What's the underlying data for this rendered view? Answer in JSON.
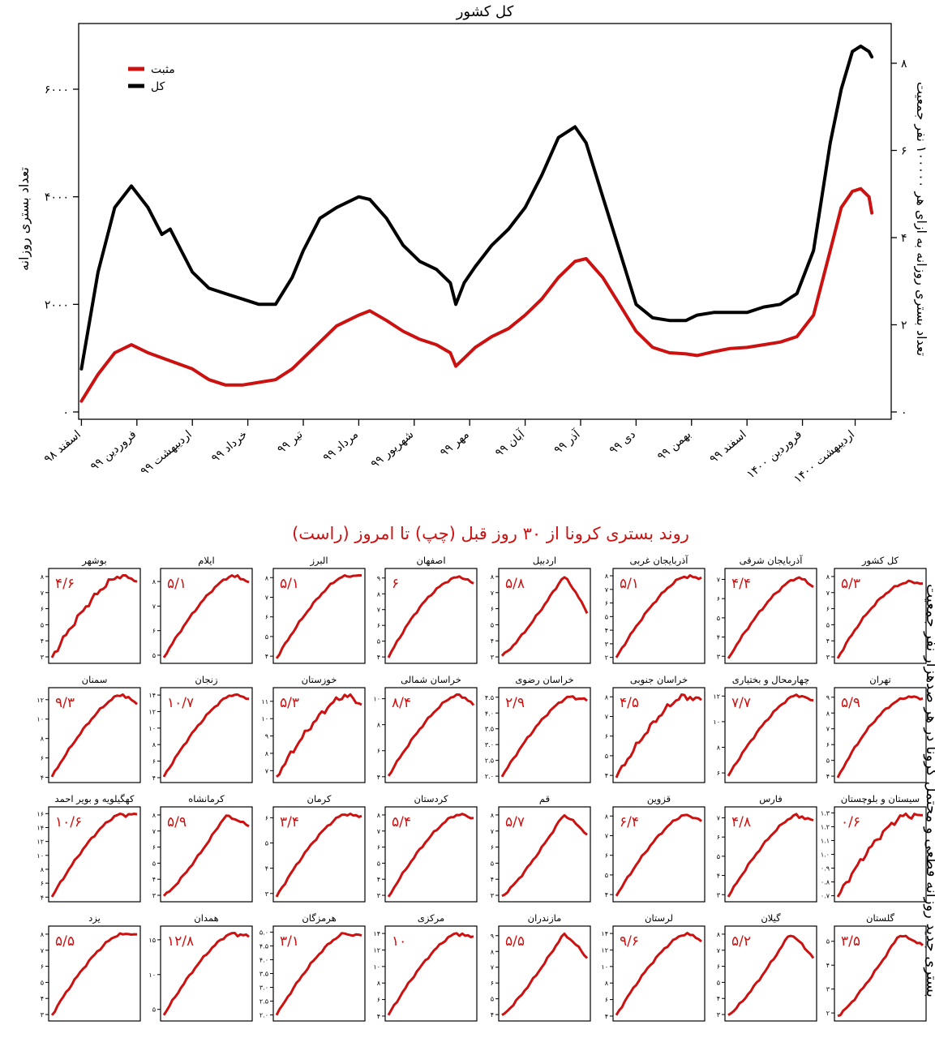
{
  "main": {
    "title": "کل کشور",
    "ylabel_left": "تعداد بستری روزانه",
    "ylabel_right": "تعداد بستری روزانه به ازای هر ۱۰۰۰۰۰ نفر جمعیت",
    "legend": [
      {
        "label": "مثبت",
        "color": "#cc1111"
      },
      {
        "label": "کل",
        "color": "#000000"
      }
    ],
    "left_ticks": [
      {
        "value": 0,
        "label": "۰"
      },
      {
        "value": 2000,
        "label": "۲۰۰۰"
      },
      {
        "value": 4000,
        "label": "۴۰۰۰"
      },
      {
        "value": 6000,
        "label": "۶۰۰۰"
      }
    ],
    "right_ticks": [
      {
        "value": 0,
        "label": "۰"
      },
      {
        "value": 2,
        "label": "۲"
      },
      {
        "value": 4,
        "label": "۴"
      },
      {
        "value": 6,
        "label": "۶"
      },
      {
        "value": 8,
        "label": "۸"
      }
    ],
    "x_ticks": [
      "اسفند ۹۸",
      "فروردین ۹۹",
      "اردیبهشت ۹۹",
      "خرداد ۹۹",
      "تیر ۹۹",
      "مرداد ۹۹",
      "شهریور ۹۹",
      "مهر ۹۹",
      "آبان ۹۹",
      "آذر ۹۹",
      "دی ۹۹",
      "بهمن ۹۹",
      "اسفند ۹۹",
      "فروردین ۱۴۰۰",
      "اردیبهشت ۱۴۰۰"
    ]
  },
  "chart_data": {
    "type": "line",
    "title": "کل کشور",
    "ylabel": "تعداد بستری روزانه",
    "y2label": "تعداد بستری روزانه به ازای هر ۱۰۰۰۰۰ نفر جمعیت",
    "ylim": [
      0,
      7500
    ],
    "y2lim": [
      0,
      8.5
    ],
    "x_unit": "month index since اسفند ۹۸",
    "series": [
      {
        "name": "کل",
        "color": "#000000",
        "x": [
          0,
          0.3,
          0.6,
          0.9,
          1.2,
          1.45,
          1.6,
          1.8,
          2.0,
          2.3,
          2.6,
          2.9,
          3.2,
          3.5,
          3.8,
          4.0,
          4.3,
          4.6,
          5.0,
          5.2,
          5.5,
          5.8,
          6.1,
          6.4,
          6.65,
          6.75,
          6.9,
          7.1,
          7.4,
          7.7,
          8.0,
          8.3,
          8.6,
          8.9,
          9.1,
          9.4,
          9.7,
          10.0,
          10.3,
          10.6,
          10.9,
          11.1,
          11.4,
          11.7,
          12.0,
          12.3,
          12.6,
          12.9,
          13.2,
          13.5,
          13.7,
          13.9,
          14.05,
          14.2,
          14.25
        ],
        "values": [
          800,
          2600,
          3800,
          4200,
          3800,
          3300,
          3400,
          3000,
          2600,
          2300,
          2200,
          2100,
          2000,
          2000,
          2500,
          3000,
          3600,
          3800,
          4000,
          3950,
          3600,
          3100,
          2800,
          2650,
          2400,
          2000,
          2400,
          2700,
          3100,
          3400,
          3800,
          4400,
          5100,
          5300,
          5000,
          4000,
          3000,
          2000,
          1750,
          1700,
          1700,
          1800,
          1850,
          1850,
          1850,
          1950,
          2000,
          2200,
          3000,
          5000,
          6000,
          6700,
          6800,
          6700,
          6600
        ]
      },
      {
        "name": "مثبت",
        "color": "#cc1111",
        "x": [
          0,
          0.3,
          0.6,
          0.9,
          1.2,
          1.6,
          2.0,
          2.3,
          2.6,
          2.9,
          3.2,
          3.5,
          3.8,
          4.0,
          4.3,
          4.6,
          5.0,
          5.2,
          5.5,
          5.8,
          6.1,
          6.4,
          6.65,
          6.75,
          6.9,
          7.1,
          7.4,
          7.7,
          8.0,
          8.3,
          8.6,
          8.9,
          9.1,
          9.4,
          9.7,
          10.0,
          10.3,
          10.6,
          10.9,
          11.1,
          11.4,
          11.7,
          12.0,
          12.3,
          12.6,
          12.9,
          13.2,
          13.5,
          13.7,
          13.9,
          14.05,
          14.2,
          14.25
        ],
        "values": [
          200,
          700,
          1100,
          1250,
          1100,
          950,
          800,
          600,
          500,
          500,
          550,
          600,
          800,
          1000,
          1300,
          1600,
          1800,
          1880,
          1700,
          1500,
          1350,
          1250,
          1100,
          850,
          1000,
          1200,
          1400,
          1550,
          1800,
          2100,
          2500,
          2800,
          2850,
          2500,
          2000,
          1500,
          1200,
          1100,
          1080,
          1050,
          1120,
          1180,
          1200,
          1250,
          1300,
          1400,
          1800,
          3000,
          3800,
          4100,
          4150,
          4000,
          3700
        ]
      }
    ]
  },
  "grid": {
    "title": "روند بستری کرونا از ۳۰ روز قبل (چپ) تا امروز (راست)",
    "side_label": "بستری جدید روزانه قطعی و محتمل کرونا در هر صدهزار نفر جمعیت",
    "line_color": "#cc1111",
    "panels": [
      {
        "name": "کل کشور",
        "value": "۵/۳",
        "ticks": [
          "۳",
          "۴",
          "۵",
          "۶",
          "۷",
          "۸"
        ],
        "ymin": 2.8,
        "ymax": 8.3,
        "shape": "smooth",
        "start": 0.02,
        "peak": 0.92,
        "end": 0.9
      },
      {
        "name": "آذربایجان شرقی",
        "value": "۴/۴",
        "ticks": [
          "۳",
          "۴",
          "۵",
          "۶",
          "۷"
        ],
        "ymin": 2.8,
        "ymax": 7.4,
        "shape": "rise",
        "start": 0.02,
        "peak": 0.96,
        "end": 0.87
      },
      {
        "name": "آذربایجان غربی",
        "value": "۵/۱",
        "ticks": [
          "۲",
          "۳",
          "۴",
          "۵",
          "۶",
          "۷",
          "۸"
        ],
        "ymin": 1.8,
        "ymax": 8.3,
        "shape": "rise",
        "start": 0.03,
        "peak": 0.98,
        "end": 0.97
      },
      {
        "name": "اردبیل",
        "value": "۵/۸",
        "ticks": [
          "۳",
          "۴",
          "۵",
          "۶",
          "۷",
          "۸"
        ],
        "ymin": 2.8,
        "ymax": 8.3,
        "shape": "hump",
        "start": 0.05,
        "peak": 0.98,
        "end": 0.55
      },
      {
        "name": "اصفهان",
        "value": "۶",
        "ticks": [
          "۴",
          "۵",
          "۶",
          "۷",
          "۸",
          "۹"
        ],
        "ymin": 3.8,
        "ymax": 9.4,
        "shape": "smooth",
        "start": 0.03,
        "peak": 0.98,
        "end": 0.9
      },
      {
        "name": "البرز",
        "value": "۵/۱",
        "ticks": [
          "۴",
          "۵",
          "۶",
          "۷",
          "۸"
        ],
        "ymin": 3.8,
        "ymax": 8.3,
        "shape": "rise",
        "start": 0.02,
        "peak": 0.99,
        "end": 0.99
      },
      {
        "name": "ایلام",
        "value": "۵/۱",
        "ticks": [
          "۵",
          "۶",
          "۷",
          "۸"
        ],
        "ymin": 4.8,
        "ymax": 8.4,
        "shape": "rise",
        "start": 0.03,
        "peak": 0.99,
        "end": 0.9
      },
      {
        "name": "بوشهر",
        "value": "۴/۶",
        "ticks": [
          "۳",
          "۴",
          "۵",
          "۶",
          "۷",
          "۸"
        ],
        "ymin": 2.8,
        "ymax": 8.3,
        "shape": "noisy",
        "start": 0.03,
        "peak": 0.99,
        "end": 0.93
      },
      {
        "name": "تهران",
        "value": "۵/۹",
        "ticks": [
          "۴",
          "۵",
          "۶",
          "۷",
          "۸",
          "۹"
        ],
        "ymin": 3.8,
        "ymax": 9.4,
        "shape": "smooth",
        "start": 0.02,
        "peak": 0.97,
        "end": 0.95
      },
      {
        "name": "چهارمحال و بختیاری",
        "value": "۷/۷",
        "ticks": [
          "۶",
          "۸",
          "۱۰",
          "۱۲"
        ],
        "ymin": 5.5,
        "ymax": 12.4,
        "shape": "rise",
        "start": 0.04,
        "peak": 0.99,
        "end": 0.93
      },
      {
        "name": "خراسان جنوبی",
        "value": "۴/۵",
        "ticks": [
          "۴",
          "۵",
          "۶",
          "۷",
          "۸"
        ],
        "ymin": 3.8,
        "ymax": 8.3,
        "shape": "noisy",
        "start": 0.02,
        "peak": 0.98,
        "end": 0.92
      },
      {
        "name": "خراسان رضوی",
        "value": "۲/۹",
        "ticks": [
          "۲.۰",
          "۲.۵",
          "۳.۰",
          "۳.۵",
          "۴.۰",
          "۴.۵"
        ],
        "ymin": 1.9,
        "ymax": 4.7,
        "shape": "rise",
        "start": 0.03,
        "peak": 0.97,
        "end": 0.92
      },
      {
        "name": "خراسان شمالی",
        "value": "۸/۴",
        "ticks": [
          "۴",
          "۶",
          "۸",
          "۱۰"
        ],
        "ymin": 3.8,
        "ymax": 10.6,
        "shape": "rise",
        "start": 0.04,
        "peak": 0.99,
        "end": 0.87
      },
      {
        "name": "خوزستان",
        "value": "۵/۳",
        "ticks": [
          "۷",
          "۸",
          "۹",
          "۱۰",
          "۱۱"
        ],
        "ymin": 6.5,
        "ymax": 11.6,
        "shape": "noisy",
        "start": 0.03,
        "peak": 0.98,
        "end": 0.87
      },
      {
        "name": "زنجان",
        "value": "۱۰/۷",
        "ticks": [
          "۴",
          "۶",
          "۸",
          "۱۰",
          "۱۲",
          "۱۴"
        ],
        "ymin": 3.8,
        "ymax": 14.5,
        "shape": "rise",
        "start": 0.03,
        "peak": 0.99,
        "end": 0.95
      },
      {
        "name": "سمنان",
        "value": "۹/۳",
        "ticks": [
          "۴",
          "۶",
          "۸",
          "۱۰",
          "۱۲"
        ],
        "ymin": 3.8,
        "ymax": 12.9,
        "shape": "rise",
        "start": 0.03,
        "peak": 0.99,
        "end": 0.9
      },
      {
        "name": "سیستان و بلوچستان",
        "value": "۰/۶",
        "ticks": [
          "۰.۷",
          "۰.۸",
          "۰.۹",
          "۱.۰",
          "۱.۱",
          "۱.۲",
          "۱.۳"
        ],
        "ymin": 0.68,
        "ymax": 1.32,
        "shape": "noisy",
        "start": 0.02,
        "peak": 0.98,
        "end": 0.98
      },
      {
        "name": "فارس",
        "value": "۴/۸",
        "ticks": [
          "۳",
          "۴",
          "۵",
          "۶",
          "۷"
        ],
        "ymin": 2.8,
        "ymax": 7.4,
        "shape": "rise",
        "start": 0.02,
        "peak": 0.98,
        "end": 0.9
      },
      {
        "name": "قزوین",
        "value": "۶/۴",
        "ticks": [
          "۴",
          "۵",
          "۶",
          "۷",
          "۸"
        ],
        "ymin": 3.8,
        "ymax": 8.3,
        "shape": "rise",
        "start": 0.03,
        "peak": 0.98,
        "end": 0.9
      },
      {
        "name": "قم",
        "value": "۵/۷",
        "ticks": [
          "۳",
          "۴",
          "۵",
          "۶",
          "۷",
          "۸"
        ],
        "ymin": 2.8,
        "ymax": 8.3,
        "shape": "hump",
        "start": 0.03,
        "peak": 0.98,
        "end": 0.75
      },
      {
        "name": "کردستان",
        "value": "۵/۴",
        "ticks": [
          "۳",
          "۴",
          "۵",
          "۶",
          "۷",
          "۸"
        ],
        "ymin": 2.8,
        "ymax": 8.3,
        "shape": "rise",
        "start": 0.02,
        "peak": 0.98,
        "end": 0.95
      },
      {
        "name": "کرمان",
        "value": "۳/۴",
        "ticks": [
          "۳",
          "۴",
          "۵",
          "۶"
        ],
        "ymin": 2.8,
        "ymax": 6.3,
        "shape": "rise",
        "start": 0.02,
        "peak": 0.99,
        "end": 0.97
      },
      {
        "name": "کرمانشاه",
        "value": "۵/۹",
        "ticks": [
          "۳",
          "۴",
          "۵",
          "۶",
          "۷",
          "۸"
        ],
        "ymin": 2.8,
        "ymax": 8.3,
        "shape": "hump",
        "start": 0.03,
        "peak": 0.97,
        "end": 0.85
      },
      {
        "name": "کهگیلویه و بویر احمد",
        "value": "۱۰/۶",
        "ticks": [
          "۴",
          "۶",
          "۸",
          "۱۰",
          "۱۲",
          "۱۴",
          "۱۶"
        ],
        "ymin": 3.8,
        "ymax": 16.5,
        "shape": "rise",
        "start": 0.02,
        "peak": 0.99,
        "end": 0.99
      },
      {
        "name": "گلستان",
        "value": "۳/۵",
        "ticks": [
          "۲",
          "۳",
          "۴",
          "۵"
        ],
        "ymin": 1.8,
        "ymax": 5.5,
        "shape": "hump",
        "start": 0.02,
        "peak": 0.97,
        "end": 0.85
      },
      {
        "name": "گیلان",
        "value": "۵/۲",
        "ticks": [
          "۳",
          "۴",
          "۵",
          "۶",
          "۷",
          "۸"
        ],
        "ymin": 2.8,
        "ymax": 8.3,
        "shape": "hump",
        "start": 0.03,
        "peak": 0.98,
        "end": 0.7
      },
      {
        "name": "لرستان",
        "value": "۹/۶",
        "ticks": [
          "۴",
          "۶",
          "۸",
          "۱۰",
          "۱۲",
          "۱۴"
        ],
        "ymin": 3.8,
        "ymax": 14.5,
        "shape": "rise",
        "start": 0.03,
        "peak": 0.98,
        "end": 0.91
      },
      {
        "name": "مازندران",
        "value": "۵/۵",
        "ticks": [
          "۴",
          "۵",
          "۶",
          "۷",
          "۸",
          "۹"
        ],
        "ymin": 3.8,
        "ymax": 9.4,
        "shape": "hump",
        "start": 0.03,
        "peak": 0.98,
        "end": 0.7
      },
      {
        "name": "مرکزی",
        "value": "۱۰",
        "ticks": [
          "۴",
          "۶",
          "۸",
          "۱۰",
          "۱۲",
          "۱۴"
        ],
        "ymin": 3.8,
        "ymax": 14.5,
        "shape": "rise",
        "start": 0.03,
        "peak": 0.99,
        "end": 0.95
      },
      {
        "name": "هرمزگان",
        "value": "۳/۱",
        "ticks": [
          "۲.۰",
          "۲.۵",
          "۳.۰",
          "۳.۵",
          "۴.۰",
          "۴.۵",
          "۵.۰"
        ],
        "ymin": 1.9,
        "ymax": 5.1,
        "shape": "rise",
        "start": 0.03,
        "peak": 0.99,
        "end": 0.96
      },
      {
        "name": "همدان",
        "value": "۱۲/۸",
        "ticks": [
          "۵",
          "۱۰",
          "۱۵"
        ],
        "ymin": 3.8,
        "ymax": 16.5,
        "shape": "rise",
        "start": 0.03,
        "peak": 0.99,
        "end": 0.95
      },
      {
        "name": "یزد",
        "value": "۵/۵",
        "ticks": [
          "۳",
          "۴",
          "۵",
          "۶",
          "۷",
          "۸"
        ],
        "ymin": 2.8,
        "ymax": 8.3,
        "shape": "rise",
        "start": 0.03,
        "peak": 0.98,
        "end": 0.97
      }
    ]
  }
}
